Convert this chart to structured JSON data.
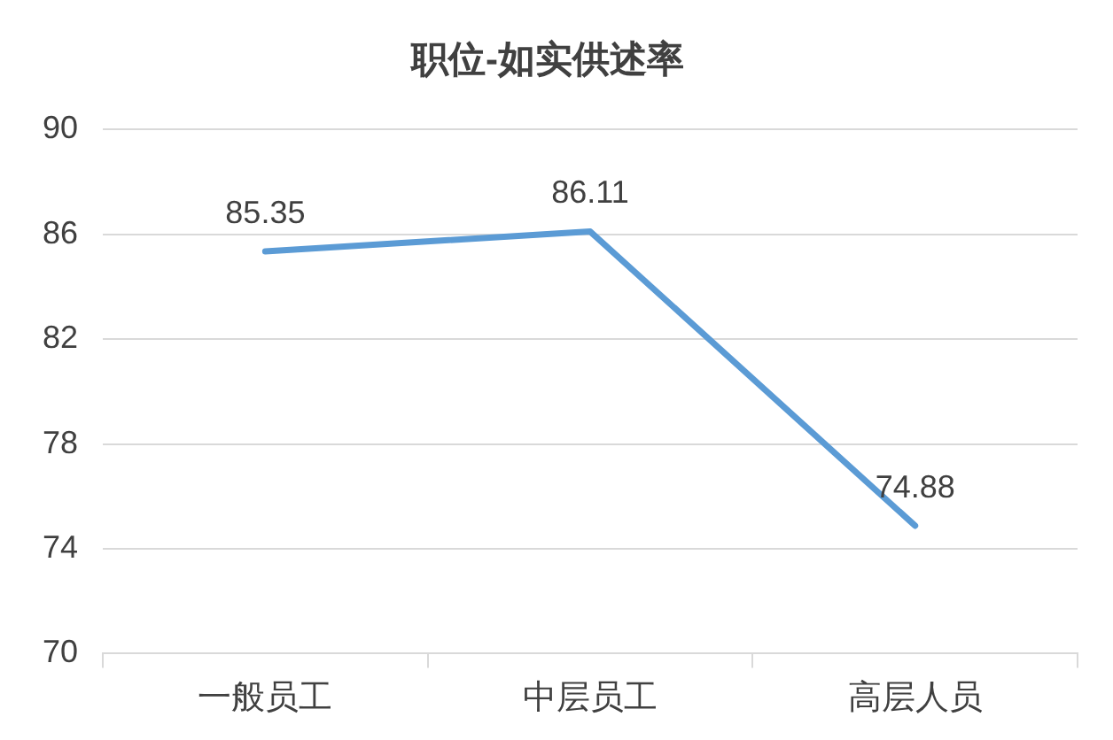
{
  "chart_data": {
    "type": "line",
    "title": "职位-如实供述率",
    "categories": [
      "一般员工",
      "中层员工",
      "高层人员"
    ],
    "series": [
      {
        "color": "#5b9bd5",
        "values": [
          85.35,
          86.11,
          74.88
        ]
      }
    ],
    "ylim": [
      70,
      90
    ],
    "yticks": [
      70,
      74,
      78,
      82,
      86,
      90
    ],
    "grid": "y",
    "legend": false,
    "marker": "none",
    "line_style": "solid",
    "data_labels": true
  }
}
